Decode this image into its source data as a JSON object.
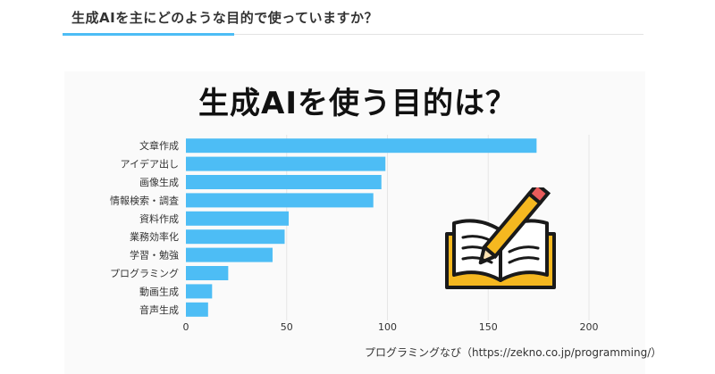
{
  "page": {
    "heading": "生成AIを主にどのような目的で使っていますか？",
    "source": "プログラミングなび（https://zekno.co.jp/programming/）"
  },
  "illustration": {
    "icon": "open-book-with-pencil"
  },
  "colors": {
    "bar": "#4dbdf5",
    "accent": "#4dbdf5",
    "grid": "#e6e6e6"
  },
  "chart_data": {
    "type": "bar",
    "orientation": "horizontal",
    "title": "生成AIを使う目的は？",
    "categories": [
      "文章作成",
      "アイデア出し",
      "画像生成",
      "情報検索・調査",
      "資料作成",
      "業務効率化",
      "学習・勉強",
      "プログラミング",
      "動画生成",
      "音声生成"
    ],
    "values": [
      174,
      99,
      97,
      93,
      51,
      49,
      43,
      21,
      13,
      11
    ],
    "xlim": [
      0,
      200
    ],
    "xticks": [
      0,
      50,
      100,
      150,
      200
    ],
    "grid": true
  }
}
